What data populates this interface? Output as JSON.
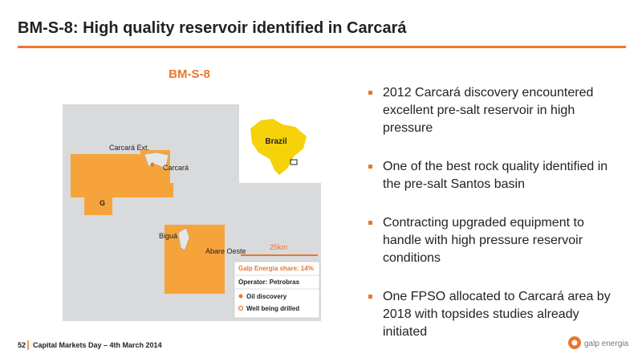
{
  "header": {
    "title": "BM-S-8: High quality reservoir identified in Carcará"
  },
  "map": {
    "title": "BM-S-8",
    "inset_label": "Brazil",
    "labels": [
      "Carcará Ext.",
      "Carcará",
      "G",
      "Biguá",
      "Abare Oeste"
    ],
    "scale": "25km",
    "legend": {
      "share": "Galp Energia share: 14%",
      "operator": "Operator: Petrobras",
      "items": [
        "Oil discovery",
        "Well being drilled"
      ]
    }
  },
  "bullets": [
    "2012 Carcará discovery encountered excellent pre-salt reservoir in high pressure",
    "One of the best rock quality identified in the pre-salt Santos basin",
    "Contracting upgraded equipment to handle with high pressure reservoir conditions",
    "One FPSO allocated to Carcará area by 2018 with topsides studies already initiated"
  ],
  "footer": {
    "page": "52",
    "text": "Capital Markets Day – 4th March 2014",
    "logo": "galp energia"
  }
}
